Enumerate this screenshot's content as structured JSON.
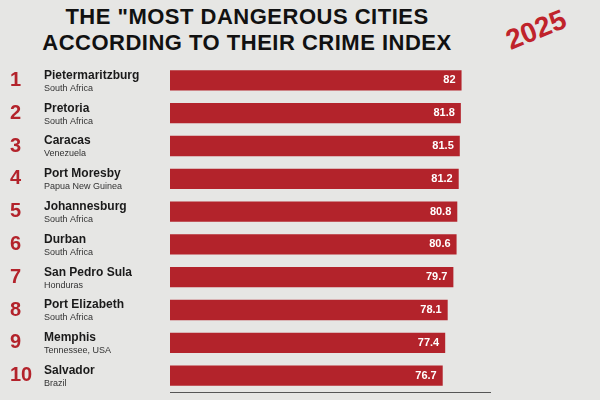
{
  "chart_data": {
    "type": "bar",
    "orientation": "horizontal",
    "title": "THE \"MOST DANGEROUS CITIES ACCORDING TO THEIR CRIME INDEX",
    "subtitle": "2025",
    "ranks": [
      1,
      2,
      3,
      4,
      5,
      6,
      7,
      8,
      9,
      10
    ],
    "categories": [
      "Pietermaritzburg",
      "Pretoria",
      "Caracas",
      "Port Moresby",
      "Johannesburg",
      "Durban",
      "San Pedro Sula",
      "Port Elizabeth",
      "Memphis",
      "Salvador"
    ],
    "countries": [
      "South Africa",
      "South Africa",
      "Venezuela",
      "Papua New Guinea",
      "South Africa",
      "South Africa",
      "Honduras",
      "South Africa",
      "Tennessee, USA",
      "Brazil"
    ],
    "values": [
      82,
      81.8,
      81.5,
      81.2,
      80.8,
      80.6,
      79.7,
      78.1,
      77.4,
      76.7
    ],
    "color": "#b3232b",
    "data_labels": true,
    "tick_labels": false,
    "grid": false,
    "xlim": [
      0,
      90
    ]
  }
}
